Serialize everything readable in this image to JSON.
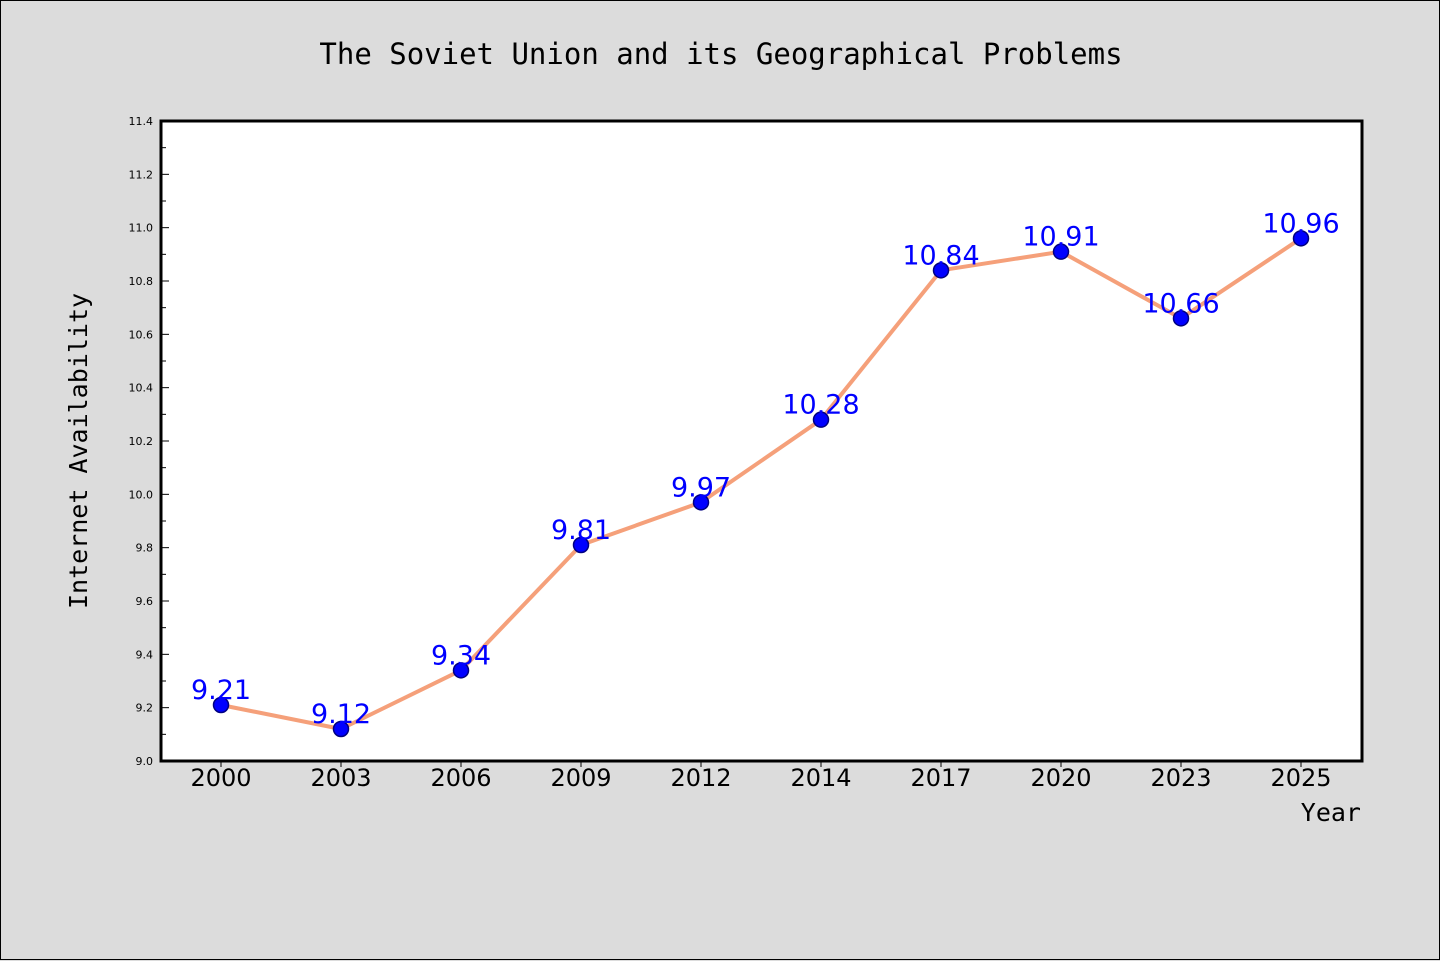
{
  "chart_data": {
    "type": "line",
    "title": "The Soviet Union and its Geographical Problems",
    "xlabel": "Year",
    "ylabel": "Internet Availability",
    "categories": [
      "2000",
      "2003",
      "2006",
      "2009",
      "2012",
      "2014",
      "2017",
      "2020",
      "2023",
      "2025"
    ],
    "series": [
      {
        "values": [
          9.21,
          9.12,
          9.34,
          9.81,
          9.97,
          10.28,
          10.84,
          10.91,
          10.66,
          10.96
        ],
        "labels": [
          "9.21",
          "9.12",
          "9.34",
          "9.81",
          "9.97",
          "10.28",
          "10.84",
          "10.91",
          "10.66",
          "10.96"
        ]
      }
    ],
    "ylim": [
      9.0,
      11.4
    ],
    "yticks": [
      "9.0",
      "9.2",
      "9.4",
      "9.6",
      "9.8",
      "10.0",
      "10.2",
      "10.4",
      "10.6",
      "10.8",
      "11.0",
      "11.2",
      "11.4"
    ],
    "grid": false,
    "colors": {
      "line": "#f5a07a",
      "marker_fill": "#0000ff",
      "marker_edge": "#000080",
      "data_label": "#0000ff",
      "plot_background": "#ffffff",
      "figure_background": "#dcdcdc"
    }
  }
}
